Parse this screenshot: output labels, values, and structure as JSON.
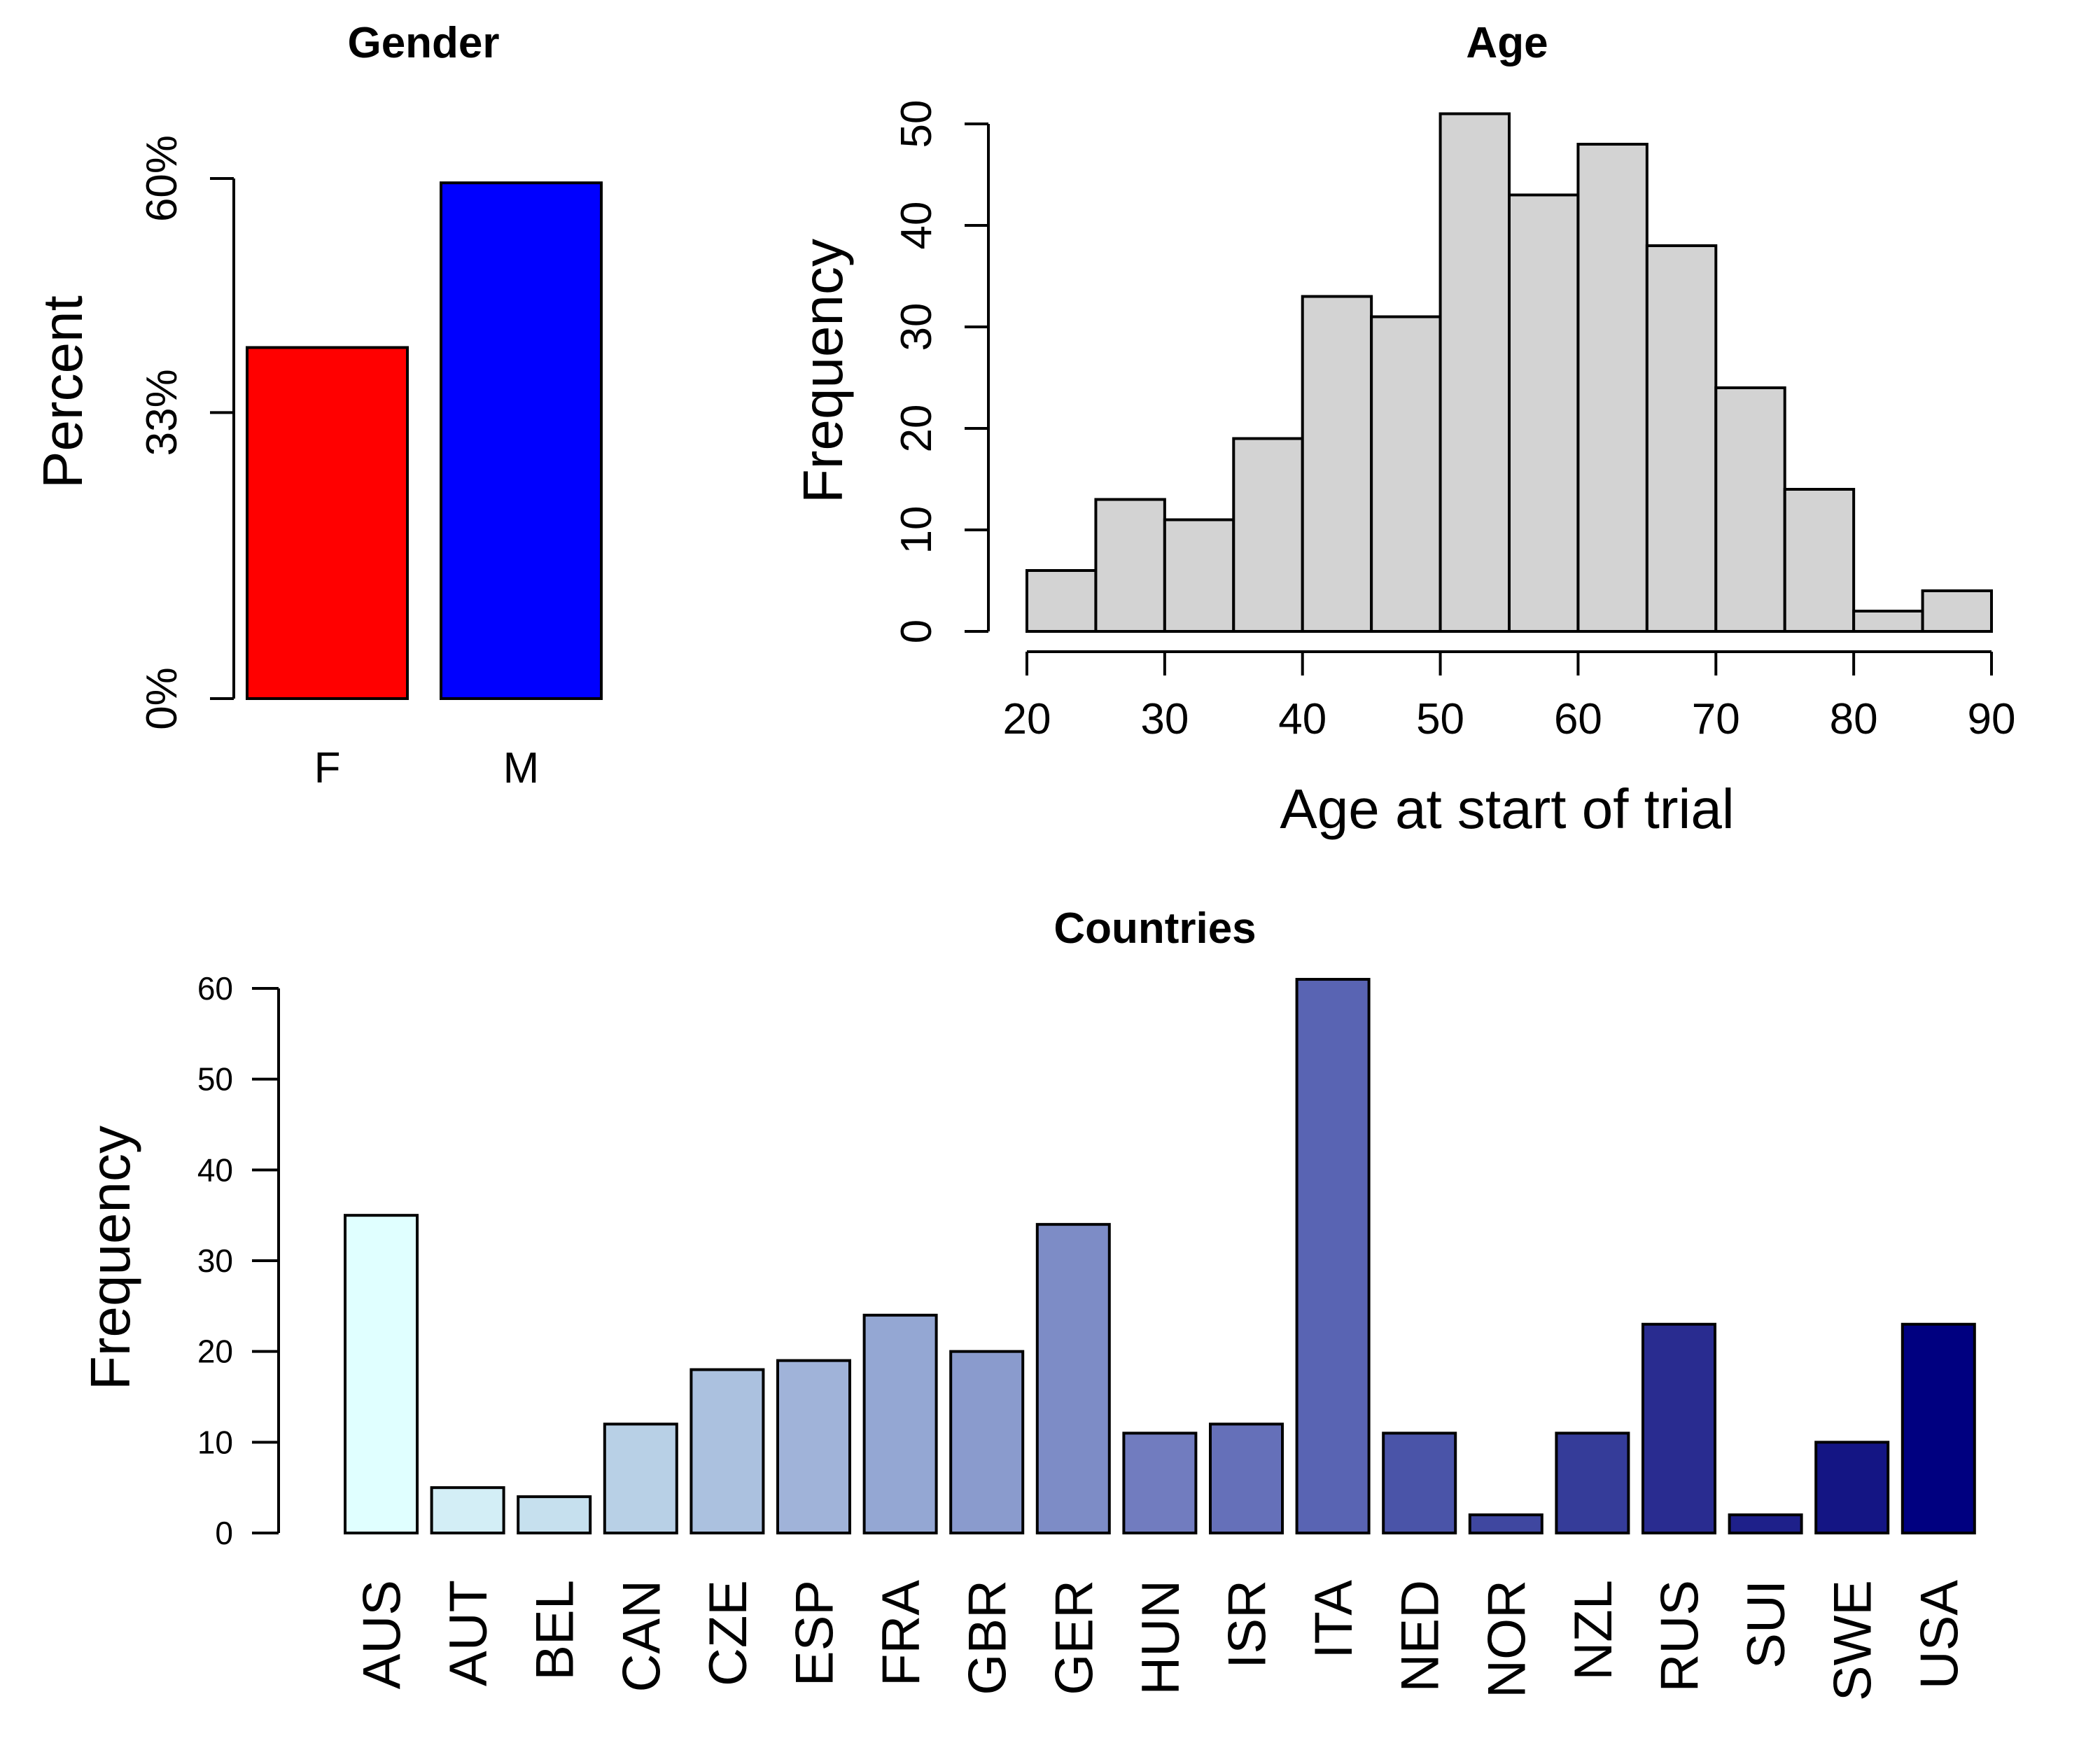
{
  "chart_data": [
    {
      "type": "bar",
      "title": "Gender",
      "ylabel": "Percent",
      "xlabel": "",
      "categories": [
        "F",
        "M"
      ],
      "values": [
        40.5,
        59.5
      ],
      "value_unit": "percent",
      "ylim": [
        0,
        60
      ],
      "yticks": [
        0,
        33,
        60
      ],
      "ytick_labels": [
        "0%",
        "33%",
        "60%"
      ],
      "colors": [
        "#ff0000",
        "#0000ff"
      ],
      "grid": false
    },
    {
      "type": "bar",
      "subtype": "histogram",
      "title": "Age",
      "xlabel": "Age at start of trial",
      "ylabel": "Frequency",
      "bin_edges": [
        20,
        25,
        30,
        35,
        40,
        45,
        50,
        55,
        60,
        65,
        70,
        75,
        80,
        85,
        90
      ],
      "values": [
        6,
        13,
        11,
        19,
        33,
        31,
        51,
        43,
        48,
        38,
        24,
        14,
        2,
        4
      ],
      "xlim": [
        20,
        90
      ],
      "ylim": [
        0,
        50
      ],
      "xticks": [
        20,
        30,
        40,
        50,
        60,
        70,
        80,
        90
      ],
      "yticks": [
        0,
        10,
        20,
        30,
        40,
        50
      ],
      "bar_color": "#d3d3d3",
      "grid": false
    },
    {
      "type": "bar",
      "title": "Countries",
      "xlabel": "",
      "ylabel": "Frequency",
      "categories": [
        "AUS",
        "AUT",
        "BEL",
        "CAN",
        "CZE",
        "ESP",
        "FRA",
        "GBR",
        "GER",
        "HUN",
        "ISR",
        "ITA",
        "NED",
        "NOR",
        "NZL",
        "RUS",
        "SUI",
        "SWE",
        "USA"
      ],
      "values": [
        35,
        5,
        4,
        12,
        18,
        19,
        24,
        20,
        34,
        11,
        12,
        61,
        11,
        2,
        11,
        23,
        2,
        10,
        23
      ],
      "ylim": [
        0,
        60
      ],
      "yticks": [
        0,
        10,
        20,
        30,
        40,
        50,
        60
      ],
      "colors": [
        "#e0ffff",
        "#d3eef6",
        "#c6e0ee",
        "#b8d0e6",
        "#abc1df",
        "#a0b3d9",
        "#94a7d3",
        "#8a9bcd",
        "#7d8cc6",
        "#717cbf",
        "#6570b9",
        "#5964b3",
        "#4a54a8",
        "#3f47a0",
        "#353c99",
        "#292c90",
        "#1e208a",
        "#141584",
        "#000080"
      ],
      "grid": false
    }
  ]
}
